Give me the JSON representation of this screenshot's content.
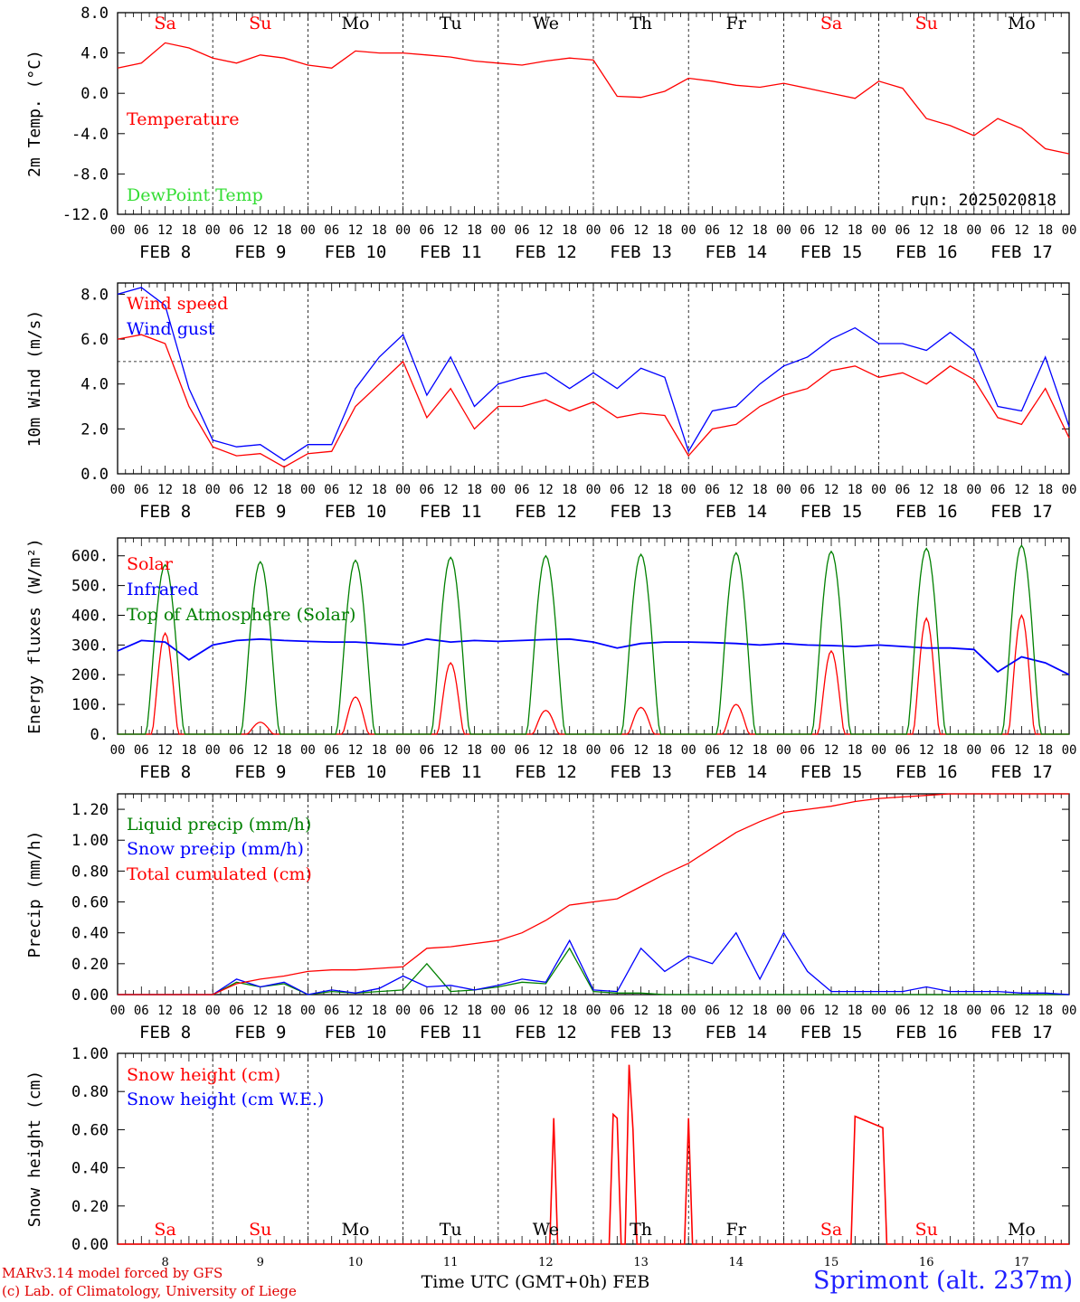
{
  "chart_data": [
    {
      "type": "line",
      "ylabel": "2m Temp. (°C)",
      "ylim": [
        -12,
        8
      ],
      "yticks": [
        "8.0",
        "4.0",
        "0.0",
        "-4.0",
        "-8.0",
        "-12.0"
      ],
      "x_hours": [
        0,
        6,
        12,
        18,
        24,
        30,
        36,
        42,
        48,
        54,
        60,
        66,
        72,
        78,
        84,
        90,
        96,
        102,
        108,
        114,
        120,
        126,
        132,
        138,
        144,
        150,
        156,
        162,
        168,
        174,
        180,
        186,
        192,
        198,
        204,
        210,
        216,
        222,
        228,
        234,
        240
      ],
      "series": [
        {
          "name": "Temperature",
          "color": "#ff0000",
          "values": [
            2.5,
            3.0,
            5.0,
            4.5,
            3.5,
            3.0,
            3.8,
            3.5,
            2.8,
            2.5,
            4.2,
            4.0,
            4.0,
            3.8,
            3.6,
            3.2,
            3.0,
            2.8,
            3.2,
            3.5,
            3.3,
            -0.3,
            -0.4,
            0.2,
            1.5,
            1.2,
            0.8,
            0.6,
            1.0,
            0.5,
            0.0,
            -0.5,
            1.2,
            0.5,
            -2.5,
            -3.2,
            -4.2,
            -2.5,
            -3.5,
            -5.5,
            -6.0
          ]
        }
      ]
    },
    {
      "type": "line",
      "ylabel": "10m Wind (m/s)",
      "ylim": [
        0,
        8.5
      ],
      "yticks": [
        "8.0",
        "6.0",
        "4.0",
        "2.0",
        "0.0"
      ],
      "reference_line": 5,
      "x_hours": [
        0,
        6,
        12,
        18,
        24,
        30,
        36,
        42,
        48,
        54,
        60,
        66,
        72,
        78,
        84,
        90,
        96,
        102,
        108,
        114,
        120,
        126,
        132,
        138,
        144,
        150,
        156,
        162,
        168,
        174,
        180,
        186,
        192,
        198,
        204,
        210,
        216,
        222,
        228,
        234,
        240
      ],
      "series": [
        {
          "name": "Wind speed",
          "color": "#ff0000",
          "values": [
            6.0,
            6.2,
            5.8,
            3.0,
            1.2,
            0.8,
            0.9,
            0.3,
            0.9,
            1.0,
            3.0,
            4.0,
            5.0,
            2.5,
            3.8,
            2.0,
            3.0,
            3.0,
            3.3,
            2.8,
            3.2,
            2.5,
            2.7,
            2.6,
            0.8,
            2.0,
            2.2,
            3.0,
            3.5,
            3.8,
            4.6,
            4.8,
            4.3,
            4.5,
            4.0,
            4.8,
            4.2,
            2.5,
            2.2,
            3.8,
            1.6
          ]
        },
        {
          "name": "Wind gust",
          "color": "#0000ff",
          "values": [
            8.0,
            8.3,
            7.5,
            3.8,
            1.5,
            1.2,
            1.3,
            0.6,
            1.3,
            1.3,
            3.8,
            5.2,
            6.2,
            3.5,
            5.2,
            3.0,
            4.0,
            4.3,
            4.5,
            3.8,
            4.5,
            3.8,
            4.7,
            4.3,
            1.0,
            2.8,
            3.0,
            4.0,
            4.8,
            5.2,
            6.0,
            6.5,
            5.8,
            5.8,
            5.5,
            6.3,
            5.5,
            3.0,
            2.8,
            5.2,
            2.1
          ]
        }
      ]
    },
    {
      "type": "line",
      "ylabel": "Energy fluxes (W/m²)",
      "ylim": [
        0,
        660
      ],
      "yticks": [
        "600.",
        "500.",
        "400.",
        "300.",
        "200.",
        "100.",
        "0."
      ],
      "x_hours": [
        0,
        6,
        12,
        18,
        24,
        30,
        36,
        42,
        48,
        54,
        60,
        66,
        72,
        78,
        84,
        90,
        96,
        102,
        108,
        114,
        120,
        126,
        132,
        138,
        144,
        150,
        156,
        162,
        168,
        174,
        180,
        186,
        192,
        198,
        204,
        210,
        216,
        222,
        228,
        234,
        240
      ],
      "series": [
        {
          "name": "Solar",
          "color": "#ff0000",
          "daily_peak": [
            340,
            40,
            125,
            240,
            80,
            90,
            100,
            280,
            390,
            400
          ]
        },
        {
          "name": "Infrared",
          "color": "#0000ff",
          "values": [
            280,
            315,
            310,
            250,
            300,
            315,
            320,
            315,
            312,
            310,
            310,
            305,
            300,
            320,
            310,
            315,
            312,
            315,
            318,
            320,
            310,
            290,
            305,
            310,
            310,
            308,
            305,
            300,
            305,
            300,
            298,
            295,
            300,
            295,
            290,
            290,
            285,
            210,
            260,
            240,
            200
          ]
        },
        {
          "name": "Top of Atmosphere (Solar)",
          "color": "#008000",
          "daily_peak": [
            570,
            580,
            585,
            595,
            600,
            605,
            610,
            615,
            625,
            635
          ]
        }
      ]
    },
    {
      "type": "line",
      "ylabel": "Precip (mm/h)",
      "ylim": [
        0,
        1.3
      ],
      "yticks": [
        "1.20",
        "1.00",
        "0.80",
        "0.60",
        "0.40",
        "0.20",
        "0.00"
      ],
      "x_hours": [
        0,
        6,
        12,
        18,
        24,
        30,
        36,
        42,
        48,
        54,
        60,
        66,
        72,
        78,
        84,
        90,
        96,
        102,
        108,
        114,
        120,
        126,
        132,
        138,
        144,
        150,
        156,
        162,
        168,
        174,
        180,
        186,
        192,
        198,
        204,
        210,
        216,
        222,
        228,
        234,
        240
      ],
      "series": [
        {
          "name": "Liquid precip (mm/h)",
          "color": "#008000",
          "values": [
            0,
            0,
            0,
            0,
            0,
            0.08,
            0.05,
            0.07,
            0,
            0.02,
            0.01,
            0.02,
            0.03,
            0.2,
            0.02,
            0.03,
            0.05,
            0.08,
            0.07,
            0.3,
            0.02,
            0.01,
            0.01,
            0,
            0,
            0,
            0,
            0,
            0,
            0,
            0,
            0,
            0,
            0,
            0,
            0,
            0,
            0,
            0,
            0,
            0
          ]
        },
        {
          "name": "Snow precip (mm/h)",
          "color": "#0000ff",
          "values": [
            0,
            0,
            0,
            0,
            0,
            0.1,
            0.05,
            0.08,
            0,
            0.03,
            0.01,
            0.04,
            0.12,
            0.05,
            0.06,
            0.03,
            0.06,
            0.1,
            0.08,
            0.35,
            0.03,
            0.02,
            0.3,
            0.15,
            0.25,
            0.2,
            0.4,
            0.1,
            0.4,
            0.15,
            0.02,
            0.02,
            0.02,
            0.02,
            0.05,
            0.02,
            0.02,
            0.02,
            0.01,
            0.01,
            0
          ]
        },
        {
          "name": "Total cumulated (cm)",
          "color": "#ff0000",
          "values": [
            0,
            0,
            0,
            0,
            0,
            0.07,
            0.1,
            0.12,
            0.15,
            0.16,
            0.16,
            0.17,
            0.18,
            0.3,
            0.31,
            0.33,
            0.35,
            0.4,
            0.48,
            0.58,
            0.6,
            0.62,
            0.7,
            0.78,
            0.85,
            0.95,
            1.05,
            1.12,
            1.18,
            1.2,
            1.22,
            1.25,
            1.27,
            1.28,
            1.29,
            1.3,
            1.3,
            1.3,
            1.3,
            1.3,
            1.3
          ]
        }
      ]
    },
    {
      "type": "line",
      "ylabel": "Snow height (cm)",
      "ylim": [
        0,
        1.0
      ],
      "yticks": [
        "1.00",
        "0.80",
        "0.60",
        "0.40",
        "0.20",
        "0.00"
      ],
      "series": [
        {
          "name": "Snow height (cm)",
          "color": "#ff0000"
        },
        {
          "name": "Snow height (cm W.E.)",
          "color": "#0000ff"
        }
      ],
      "snow_points": [
        [
          0,
          0
        ],
        [
          109,
          0
        ],
        [
          110,
          0.66
        ],
        [
          111,
          0
        ],
        [
          124,
          0
        ],
        [
          125,
          0.68
        ],
        [
          126,
          0.66
        ],
        [
          127,
          0
        ],
        [
          128,
          0
        ],
        [
          129,
          0.94
        ],
        [
          130,
          0.6
        ],
        [
          131,
          0
        ],
        [
          143,
          0
        ],
        [
          144,
          0.66
        ],
        [
          145,
          0
        ],
        [
          185,
          0
        ],
        [
          186,
          0.67
        ],
        [
          193,
          0.61
        ],
        [
          194,
          0
        ],
        [
          240,
          0
        ]
      ],
      "xlabel": "Time UTC (GMT+0h) FEB",
      "day_numbers": [
        "8",
        "9",
        "10",
        "11",
        "12",
        "13",
        "14",
        "15",
        "16",
        "17"
      ]
    }
  ],
  "days": [
    {
      "abbr": "Sa",
      "weekend": true,
      "label": "FEB  8"
    },
    {
      "abbr": "Su",
      "weekend": true,
      "label": "FEB  9"
    },
    {
      "abbr": "Mo",
      "weekend": false,
      "label": "FEB 10"
    },
    {
      "abbr": "Tu",
      "weekend": false,
      "label": "FEB 11"
    },
    {
      "abbr": "We",
      "weekend": false,
      "label": "FEB 12"
    },
    {
      "abbr": "Th",
      "weekend": false,
      "label": "FEB 13"
    },
    {
      "abbr": "Fr",
      "weekend": false,
      "label": "FEB 14"
    },
    {
      "abbr": "Sa",
      "weekend": true,
      "label": "FEB 15"
    },
    {
      "abbr": "Su",
      "weekend": true,
      "label": "FEB 16"
    },
    {
      "abbr": "Mo",
      "weekend": false,
      "label": "FEB 17"
    }
  ],
  "hour_ticks": [
    "00",
    "06",
    "12",
    "18"
  ],
  "final_tick": "00",
  "run_label": "run: 2025020818",
  "credits": {
    "line1": "MARv3.14 model forced by GFS",
    "line2": "(c) Lab. of Climatology, University of Liege"
  },
  "station": "Sprimont (alt. 237m)"
}
